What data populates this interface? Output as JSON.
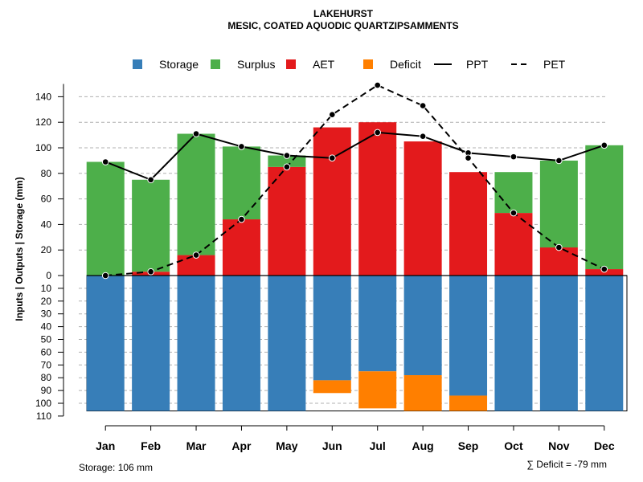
{
  "chart_data": {
    "type": "bar",
    "title": "LAKEHURST",
    "subtitle": "MESIC, COATED AQUODIC QUARTZIPSAMMENTS",
    "ylabel": "Inputs | Outputs | Storage     (mm)",
    "categories": [
      "Jan",
      "Feb",
      "Mar",
      "Apr",
      "May",
      "Jun",
      "Jul",
      "Aug",
      "Sep",
      "Oct",
      "Nov",
      "Dec"
    ],
    "upper_ylim": [
      0,
      150
    ],
    "upper_ticks": [
      0,
      20,
      40,
      60,
      80,
      100,
      120,
      140
    ],
    "lower_ylim": [
      0,
      110
    ],
    "lower_ticks": [
      0,
      10,
      20,
      30,
      40,
      50,
      60,
      70,
      80,
      90,
      100,
      110
    ],
    "series": [
      {
        "name": "AET",
        "color": "#e31a1c",
        "values": [
          0,
          3,
          16,
          44,
          85,
          116,
          120,
          105,
          81,
          49,
          22,
          5
        ]
      },
      {
        "name": "Surplus",
        "color": "#4daf4a",
        "values": [
          89,
          72,
          95,
          57,
          9,
          0,
          0,
          0,
          0,
          32,
          68,
          97
        ]
      },
      {
        "name": "Storage",
        "color": "#377eb8",
        "values": [
          106,
          106,
          106,
          106,
          106,
          82,
          75,
          78,
          94,
          106,
          106,
          106
        ]
      },
      {
        "name": "Deficit",
        "color": "#ff7f00",
        "values": [
          0,
          0,
          0,
          0,
          0,
          10,
          29,
          28,
          12,
          0,
          0,
          0
        ]
      },
      {
        "name": "PPT",
        "color": "#000000",
        "style": "solid",
        "values": [
          89,
          75,
          111,
          101,
          94,
          92,
          112,
          109,
          96,
          93,
          90,
          102
        ]
      },
      {
        "name": "PET",
        "color": "#000000",
        "style": "dashed",
        "values": [
          0,
          3,
          16,
          44,
          85,
          126,
          149,
          133,
          92,
          49,
          22,
          5
        ]
      }
    ],
    "legend": [
      {
        "label": "Storage",
        "color": "#377eb8",
        "kind": "box"
      },
      {
        "label": "Surplus",
        "color": "#4daf4a",
        "kind": "box"
      },
      {
        "label": "AET",
        "color": "#e31a1c",
        "kind": "box"
      },
      {
        "label": "Deficit",
        "color": "#ff7f00",
        "kind": "box"
      },
      {
        "label": "PPT",
        "color": "#000000",
        "kind": "solid"
      },
      {
        "label": "PET",
        "color": "#000000",
        "kind": "dashed"
      }
    ],
    "legend_position": "top",
    "grid": true,
    "storage_capacity": 106,
    "storage_note": "Storage: 106 mm",
    "deficit_note": "∑ Deficit = -79 mm"
  }
}
